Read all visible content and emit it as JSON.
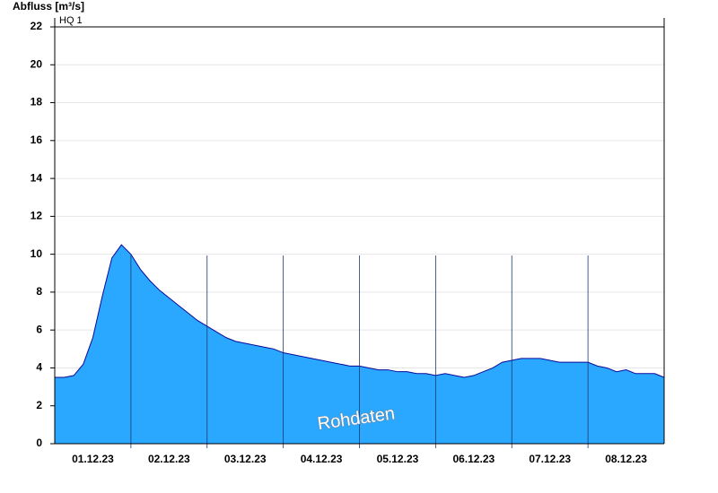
{
  "chart_data": {
    "type": "area",
    "ylabel": "Abfluss [m³/s]",
    "annotations": [
      "HQ 1",
      "Rohdaten"
    ],
    "color": "#2aa7ff",
    "line_color": "#0a0a9a",
    "xlim": [
      0,
      8
    ],
    "xticks": [
      {
        "value": 0.5,
        "label": "01.12.23"
      },
      {
        "value": 1.5,
        "label": "02.12.23"
      },
      {
        "value": 2.5,
        "label": "03.12.23"
      },
      {
        "value": 3.5,
        "label": "04.12.23"
      },
      {
        "value": 4.5,
        "label": "05.12.23"
      },
      {
        "value": 5.5,
        "label": "06.12.23"
      },
      {
        "value": 6.5,
        "label": "07.12.23"
      },
      {
        "value": 7.5,
        "label": "08.12.23"
      }
    ],
    "ylim": [
      0,
      22
    ],
    "yticks": [
      0,
      2,
      4,
      6,
      8,
      10,
      12,
      14,
      16,
      18,
      20,
      22
    ],
    "grid": true,
    "x": [
      0,
      0.125,
      0.25,
      0.375,
      0.5,
      0.625,
      0.75,
      0.875,
      1,
      1.125,
      1.25,
      1.375,
      1.5,
      1.625,
      1.75,
      1.875,
      2,
      2.125,
      2.25,
      2.375,
      2.5,
      2.625,
      2.75,
      2.875,
      3,
      3.125,
      3.25,
      3.375,
      3.5,
      3.625,
      3.75,
      3.875,
      4,
      4.125,
      4.25,
      4.375,
      4.5,
      4.625,
      4.75,
      4.875,
      5,
      5.125,
      5.25,
      5.375,
      5.5,
      5.625,
      5.75,
      5.875,
      6,
      6.125,
      6.25,
      6.375,
      6.5,
      6.625,
      6.75,
      6.875,
      7,
      7.125,
      7.25,
      7.375,
      7.5,
      7.625,
      7.75,
      7.875,
      8
    ],
    "values": [
      3.5,
      3.5,
      3.6,
      4.2,
      5.6,
      7.8,
      9.8,
      10.5,
      10.0,
      9.2,
      8.6,
      8.1,
      7.7,
      7.3,
      6.9,
      6.5,
      6.2,
      5.9,
      5.6,
      5.4,
      5.3,
      5.2,
      5.1,
      5.0,
      4.8,
      4.7,
      4.6,
      4.5,
      4.4,
      4.3,
      4.2,
      4.1,
      4.1,
      4.0,
      3.9,
      3.9,
      3.8,
      3.8,
      3.7,
      3.7,
      3.6,
      3.7,
      3.6,
      3.5,
      3.6,
      3.8,
      4.0,
      4.3,
      4.4,
      4.5,
      4.5,
      4.5,
      4.4,
      4.3,
      4.3,
      4.3,
      4.3,
      4.1,
      4.0,
      3.8,
      3.9,
      3.7,
      3.7,
      3.7,
      3.5
    ]
  }
}
